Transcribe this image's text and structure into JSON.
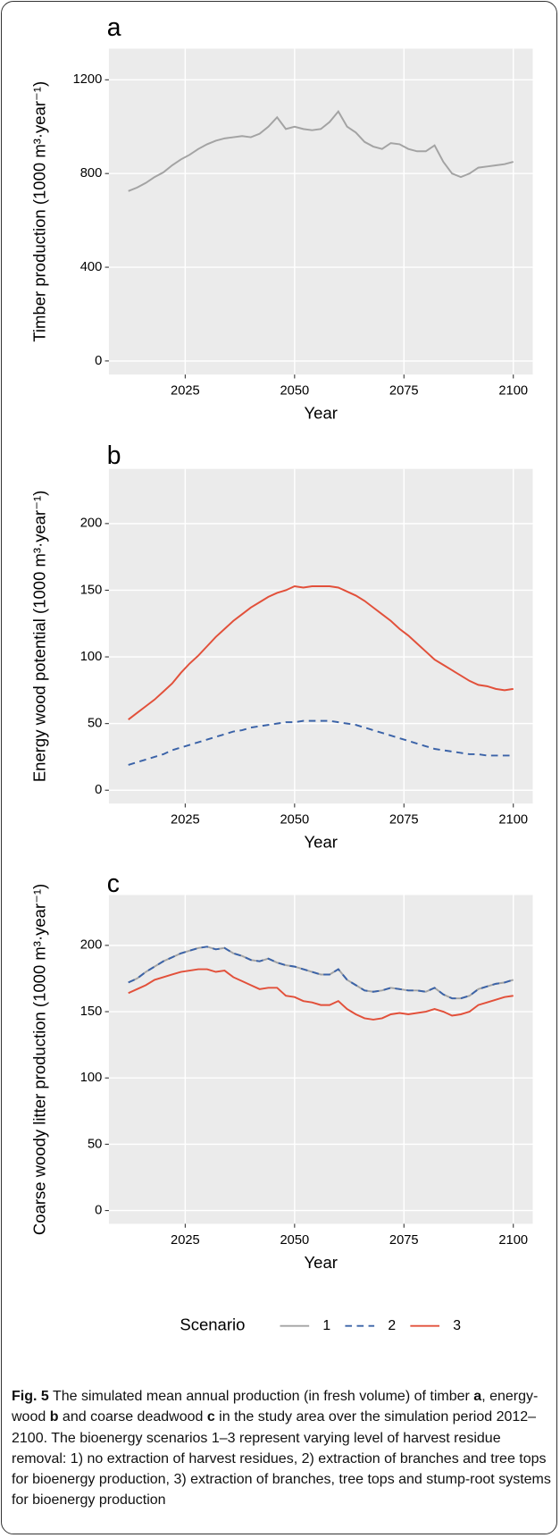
{
  "chart_data": [
    {
      "type": "line",
      "title": "a",
      "x_label": "Year",
      "y_label": "Timber production (1000 m³·year⁻¹)",
      "x": [
        2012,
        2014,
        2016,
        2018,
        2020,
        2022,
        2024,
        2026,
        2028,
        2030,
        2032,
        2034,
        2036,
        2038,
        2040,
        2042,
        2044,
        2046,
        2048,
        2050,
        2052,
        2054,
        2056,
        2058,
        2060,
        2062,
        2064,
        2066,
        2068,
        2070,
        2072,
        2074,
        2076,
        2078,
        2080,
        2082,
        2084,
        2086,
        2088,
        2090,
        2092,
        2094,
        2096,
        2098,
        2100
      ],
      "xlim": [
        2007.55,
        2104.45
      ],
      "xticks": [
        2025,
        2050,
        2075,
        2100
      ],
      "ylim": [
        -58,
        1333
      ],
      "yticks": [
        0,
        400,
        800,
        1200
      ],
      "grid": true,
      "series": [
        {
          "name": "1",
          "color": "#a3a3a3",
          "linestyle": "solid",
          "values": [
            725,
            740,
            760,
            785,
            805,
            835,
            860,
            880,
            905,
            925,
            940,
            950,
            955,
            960,
            955,
            970,
            1000,
            1040,
            990,
            1000,
            990,
            985,
            990,
            1020,
            1065,
            1000,
            975,
            935,
            915,
            905,
            930,
            925,
            905,
            895,
            895,
            920,
            850,
            800,
            785,
            800,
            825,
            830,
            835,
            840,
            850
          ]
        }
      ]
    },
    {
      "type": "line",
      "title": "b",
      "x_label": "Year",
      "y_label": "Energy wood potential (1000 m³·year⁻¹)",
      "x": [
        2012,
        2014,
        2016,
        2018,
        2020,
        2022,
        2024,
        2026,
        2028,
        2030,
        2032,
        2034,
        2036,
        2038,
        2040,
        2042,
        2044,
        2046,
        2048,
        2050,
        2052,
        2054,
        2056,
        2058,
        2060,
        2062,
        2064,
        2066,
        2068,
        2070,
        2072,
        2074,
        2076,
        2078,
        2080,
        2082,
        2084,
        2086,
        2088,
        2090,
        2092,
        2094,
        2096,
        2098,
        2100
      ],
      "xlim": [
        2007.55,
        2104.45
      ],
      "xticks": [
        2025,
        2050,
        2075,
        2100
      ],
      "ylim": [
        -10,
        241
      ],
      "yticks": [
        0,
        50,
        100,
        150,
        200
      ],
      "grid": true,
      "series": [
        {
          "name": "2",
          "color": "#3b63a8",
          "linestyle": "dashed",
          "values": [
            19,
            21,
            23,
            25,
            27,
            30,
            32,
            34,
            36,
            38,
            40,
            42,
            44,
            45,
            47,
            48,
            49,
            50,
            51,
            51,
            52,
            52,
            52,
            52,
            51,
            50,
            49,
            47,
            45,
            43,
            41,
            39,
            37,
            35,
            33,
            31,
            30,
            29,
            28,
            27,
            27,
            26,
            26,
            26,
            26
          ]
        },
        {
          "name": "3",
          "color": "#e2503a",
          "linestyle": "solid",
          "values": [
            53,
            58,
            63,
            68,
            74,
            80,
            88,
            95,
            101,
            108,
            115,
            121,
            127,
            132,
            137,
            141,
            145,
            148,
            150,
            153,
            152,
            153,
            153,
            153,
            152,
            149,
            146,
            142,
            137,
            132,
            127,
            121,
            116,
            110,
            104,
            98,
            94,
            90,
            86,
            82,
            79,
            78,
            76,
            75,
            76
          ]
        }
      ]
    },
    {
      "type": "line",
      "title": "c",
      "x_label": "Year",
      "y_label": "Coarse woody litter production (1000 m³·year⁻¹)",
      "x": [
        2012,
        2014,
        2016,
        2018,
        2020,
        2022,
        2024,
        2026,
        2028,
        2030,
        2032,
        2034,
        2036,
        2038,
        2040,
        2042,
        2044,
        2046,
        2048,
        2050,
        2052,
        2054,
        2056,
        2058,
        2060,
        2062,
        2064,
        2066,
        2068,
        2070,
        2072,
        2074,
        2076,
        2078,
        2080,
        2082,
        2084,
        2086,
        2088,
        2090,
        2092,
        2094,
        2096,
        2098,
        2100
      ],
      "xlim": [
        2007.55,
        2104.45
      ],
      "xticks": [
        2025,
        2050,
        2075,
        2100
      ],
      "ylim": [
        -10,
        238
      ],
      "yticks": [
        0,
        50,
        100,
        150,
        200
      ],
      "grid": true,
      "series": [
        {
          "name": "1",
          "color": "#a3a3a3",
          "linestyle": "solid",
          "values": [
            172,
            175,
            180,
            184,
            188,
            191,
            194,
            196,
            198,
            199,
            197,
            198,
            194,
            192,
            189,
            188,
            190,
            187,
            185,
            184,
            182,
            180,
            178,
            178,
            182,
            174,
            170,
            166,
            165,
            166,
            168,
            167,
            166,
            166,
            165,
            168,
            163,
            160,
            160,
            162,
            167,
            169,
            171,
            172,
            174
          ]
        },
        {
          "name": "2",
          "color": "#3b63a8",
          "linestyle": "dashed",
          "values": [
            172,
            175,
            180,
            184,
            188,
            191,
            194,
            196,
            198,
            199,
            197,
            198,
            194,
            192,
            189,
            188,
            190,
            187,
            185,
            184,
            182,
            180,
            178,
            178,
            182,
            174,
            170,
            166,
            165,
            166,
            168,
            167,
            166,
            166,
            165,
            168,
            163,
            160,
            160,
            162,
            167,
            169,
            171,
            172,
            174
          ]
        },
        {
          "name": "3",
          "color": "#e2503a",
          "linestyle": "solid",
          "values": [
            164,
            167,
            170,
            174,
            176,
            178,
            180,
            181,
            182,
            182,
            180,
            181,
            176,
            173,
            170,
            167,
            168,
            168,
            162,
            161,
            158,
            157,
            155,
            155,
            158,
            152,
            148,
            145,
            144,
            145,
            148,
            149,
            148,
            149,
            150,
            152,
            150,
            147,
            148,
            150,
            155,
            157,
            159,
            161,
            162
          ]
        }
      ]
    }
  ],
  "legend": {
    "title": "Scenario",
    "position": "bottom"
  },
  "caption": [
    {
      "text": "Fig. 5",
      "bold": true
    },
    {
      "text": " The simulated mean annual production (in fresh volume) of timber "
    },
    {
      "text": "a",
      "bold": true
    },
    {
      "text": ", energy-wood "
    },
    {
      "text": "b",
      "bold": true
    },
    {
      "text": " and coarse deadwood "
    },
    {
      "text": "c",
      "bold": true
    },
    {
      "text": " in the study area over the simulation period 2012–2100. The bioenergy scenarios 1–3 represent varying level of harvest residue removal: 1) no extraction of harvest residues, 2) extraction of branches and tree tops for bioenergy production, 3) extraction of branches, tree tops and stump-root systems for bioenergy production"
    }
  ]
}
